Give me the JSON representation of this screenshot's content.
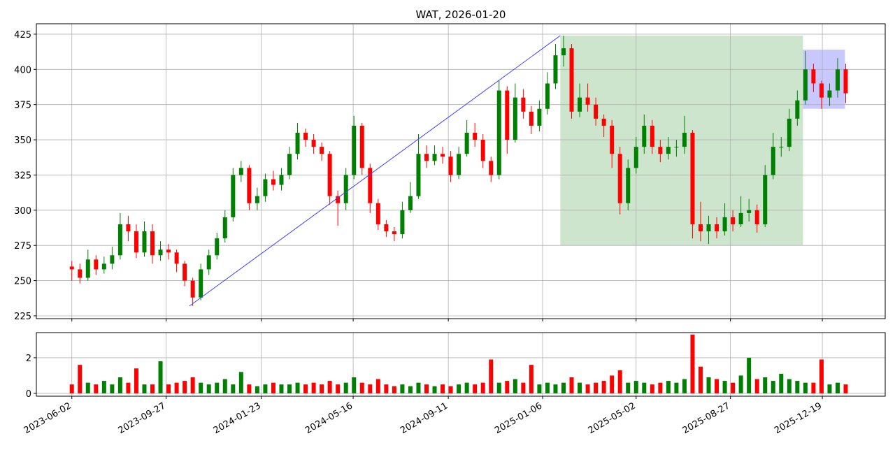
{
  "chart_data": {
    "type": "candlestick",
    "title": "WAT, 2026-01-20",
    "x": [
      "2023-06-02",
      "2023-06-12",
      "2023-06-22",
      "2023-07-02",
      "2023-07-12",
      "2023-07-22",
      "2023-08-01",
      "2023-08-11",
      "2023-08-21",
      "2023-08-31",
      "2023-09-10",
      "2023-09-20",
      "2023-09-30",
      "2023-10-10",
      "2023-10-20",
      "2023-10-30",
      "2023-11-09",
      "2023-11-19",
      "2023-11-29",
      "2023-12-09",
      "2023-12-19",
      "2023-12-29",
      "2024-01-08",
      "2024-01-18",
      "2024-01-28",
      "2024-02-07",
      "2024-02-17",
      "2024-02-27",
      "2024-03-08",
      "2024-03-18",
      "2024-03-28",
      "2024-04-07",
      "2024-04-17",
      "2024-04-27",
      "2024-05-07",
      "2024-05-17",
      "2024-05-27",
      "2024-06-06",
      "2024-06-16",
      "2024-06-26",
      "2024-07-06",
      "2024-07-16",
      "2024-07-26",
      "2024-08-05",
      "2024-08-15",
      "2024-08-25",
      "2024-09-04",
      "2024-09-14",
      "2024-09-24",
      "2024-10-04",
      "2024-10-14",
      "2024-10-24",
      "2024-11-03",
      "2024-11-13",
      "2024-11-23",
      "2024-12-03",
      "2024-12-13",
      "2024-12-23",
      "2025-01-02",
      "2025-01-12",
      "2025-01-22",
      "2025-02-01",
      "2025-02-11",
      "2025-02-21",
      "2025-03-03",
      "2025-03-13",
      "2025-03-23",
      "2025-04-02",
      "2025-04-12",
      "2025-04-22",
      "2025-05-02",
      "2025-05-12",
      "2025-05-22",
      "2025-06-01",
      "2025-06-11",
      "2025-06-21",
      "2025-07-01",
      "2025-07-11",
      "2025-07-21",
      "2025-07-31",
      "2025-08-10",
      "2025-08-20",
      "2025-08-30",
      "2025-09-09",
      "2025-09-19",
      "2025-09-29",
      "2025-10-09",
      "2025-10-19",
      "2025-10-29",
      "2025-11-08",
      "2025-11-18",
      "2025-11-28",
      "2025-12-08",
      "2025-12-18",
      "2025-12-28",
      "2026-01-07",
      "2026-01-17"
    ],
    "open": [
      260,
      258,
      252,
      265,
      258,
      262,
      268,
      290,
      285,
      270,
      285,
      268,
      272,
      270,
      262,
      250,
      238,
      258,
      268,
      280,
      295,
      325,
      330,
      305,
      310,
      322,
      318,
      325,
      340,
      355,
      350,
      345,
      340,
      310,
      305,
      325,
      360,
      330,
      305,
      290,
      285,
      283,
      300,
      310,
      340,
      335,
      340,
      338,
      325,
      340,
      355,
      350,
      335,
      325,
      385,
      350,
      380,
      370,
      360,
      372,
      390,
      410,
      415,
      370,
      380,
      375,
      365,
      360,
      340,
      305,
      330,
      345,
      360,
      345,
      340,
      345,
      345,
      355,
      290,
      285,
      290,
      285,
      295,
      290,
      298,
      300,
      290,
      325,
      345,
      345,
      365,
      378,
      400,
      390,
      380,
      385,
      400
    ],
    "high": [
      264,
      262,
      272,
      268,
      267,
      274,
      298,
      296,
      290,
      292,
      290,
      278,
      276,
      272,
      264,
      252,
      262,
      272,
      284,
      300,
      330,
      335,
      332,
      316,
      326,
      328,
      330,
      345,
      362,
      358,
      354,
      348,
      342,
      314,
      330,
      367,
      362,
      333,
      308,
      293,
      288,
      306,
      320,
      354,
      346,
      346,
      345,
      342,
      345,
      364,
      362,
      354,
      338,
      392,
      388,
      390,
      386,
      374,
      378,
      398,
      418,
      424,
      418,
      390,
      390,
      380,
      368,
      364,
      345,
      336,
      352,
      368,
      364,
      350,
      352,
      350,
      367,
      357,
      306,
      296,
      295,
      305,
      300,
      310,
      308,
      304,
      332,
      355,
      352,
      372,
      385,
      413,
      404,
      392,
      390,
      408,
      404
    ],
    "low": [
      250,
      248,
      250,
      254,
      255,
      258,
      265,
      278,
      266,
      267,
      262,
      264,
      265,
      256,
      246,
      232,
      236,
      254,
      265,
      277,
      292,
      320,
      300,
      300,
      306,
      314,
      314,
      322,
      336,
      345,
      340,
      335,
      304,
      289,
      300,
      322,
      325,
      298,
      286,
      281,
      278,
      280,
      298,
      308,
      330,
      332,
      333,
      320,
      322,
      338,
      345,
      330,
      320,
      322,
      340,
      348,
      365,
      354,
      356,
      368,
      386,
      402,
      365,
      366,
      370,
      360,
      352,
      330,
      297,
      300,
      326,
      340,
      340,
      334,
      336,
      338,
      340,
      280,
      278,
      276,
      280,
      282,
      285,
      288,
      292,
      284,
      288,
      322,
      338,
      342,
      360,
      375,
      384,
      372,
      374,
      380,
      376
    ],
    "close": [
      258,
      252,
      265,
      258,
      262,
      268,
      290,
      285,
      270,
      285,
      268,
      272,
      270,
      262,
      250,
      238,
      258,
      268,
      280,
      295,
      325,
      330,
      305,
      310,
      322,
      318,
      325,
      340,
      355,
      350,
      345,
      340,
      310,
      305,
      325,
      360,
      330,
      305,
      290,
      285,
      283,
      300,
      310,
      340,
      335,
      340,
      338,
      325,
      340,
      355,
      350,
      335,
      325,
      385,
      350,
      380,
      370,
      360,
      372,
      390,
      410,
      415,
      370,
      380,
      375,
      365,
      360,
      340,
      305,
      330,
      345,
      360,
      345,
      340,
      345,
      345,
      355,
      290,
      285,
      290,
      285,
      295,
      290,
      298,
      300,
      290,
      325,
      345,
      345,
      365,
      378,
      400,
      390,
      380,
      385,
      400,
      383
    ],
    "volume": [
      0.5,
      1.6,
      0.6,
      0.5,
      0.7,
      0.5,
      0.9,
      0.6,
      1.4,
      0.5,
      0.5,
      1.8,
      0.5,
      0.6,
      0.7,
      0.9,
      0.6,
      0.5,
      0.6,
      0.8,
      0.5,
      1.2,
      0.5,
      0.4,
      0.5,
      0.6,
      0.5,
      0.5,
      0.6,
      0.5,
      0.6,
      0.5,
      0.7,
      0.5,
      0.6,
      0.9,
      0.6,
      0.5,
      0.8,
      0.5,
      0.4,
      0.5,
      0.4,
      0.6,
      0.5,
      0.4,
      0.5,
      0.4,
      0.5,
      0.6,
      0.5,
      0.6,
      1.9,
      0.6,
      0.7,
      0.8,
      0.6,
      1.6,
      0.5,
      0.6,
      0.5,
      0.6,
      0.9,
      0.6,
      0.5,
      0.6,
      0.7,
      1.0,
      1.3,
      0.6,
      0.7,
      0.6,
      0.5,
      0.6,
      0.7,
      0.6,
      0.8,
      3.3,
      1.5,
      0.9,
      0.8,
      0.7,
      0.6,
      1.0,
      2.0,
      0.8,
      0.9,
      0.7,
      1.1,
      0.8,
      0.7,
      0.6,
      0.6,
      1.9,
      0.5,
      0.6,
      0.5
    ],
    "xlim": [
      "2023-04-19",
      "2026-03-07"
    ],
    "xticks": [
      "2023-06-02",
      "2023-09-27",
      "2024-01-23",
      "2024-05-16",
      "2024-09-11",
      "2025-01-06",
      "2025-05-02",
      "2025-08-27",
      "2025-12-19"
    ],
    "ylim": [
      223,
      432.4
    ],
    "yticks": [
      225,
      250,
      275,
      300,
      325,
      350,
      375,
      400,
      425
    ],
    "volume_ylim": [
      -0.16,
      3.41
    ],
    "volume_yticks": [
      0,
      2
    ],
    "grid": true,
    "up_color": "#008000",
    "down_color": "#ff0000",
    "trend_line": {
      "x": [
        "2023-10-26",
        "2025-01-28"
      ],
      "y": [
        232,
        424
      ],
      "color": "#4040ff"
    },
    "zones": [
      {
        "x": [
          "2025-01-28",
          "2025-11-25"
        ],
        "y": [
          275,
          424
        ],
        "color": "#cde5cd"
      },
      {
        "x": [
          "2025-11-25",
          "2026-01-16"
        ],
        "y": [
          372,
          414
        ],
        "color": "#c8c8ff"
      }
    ]
  }
}
